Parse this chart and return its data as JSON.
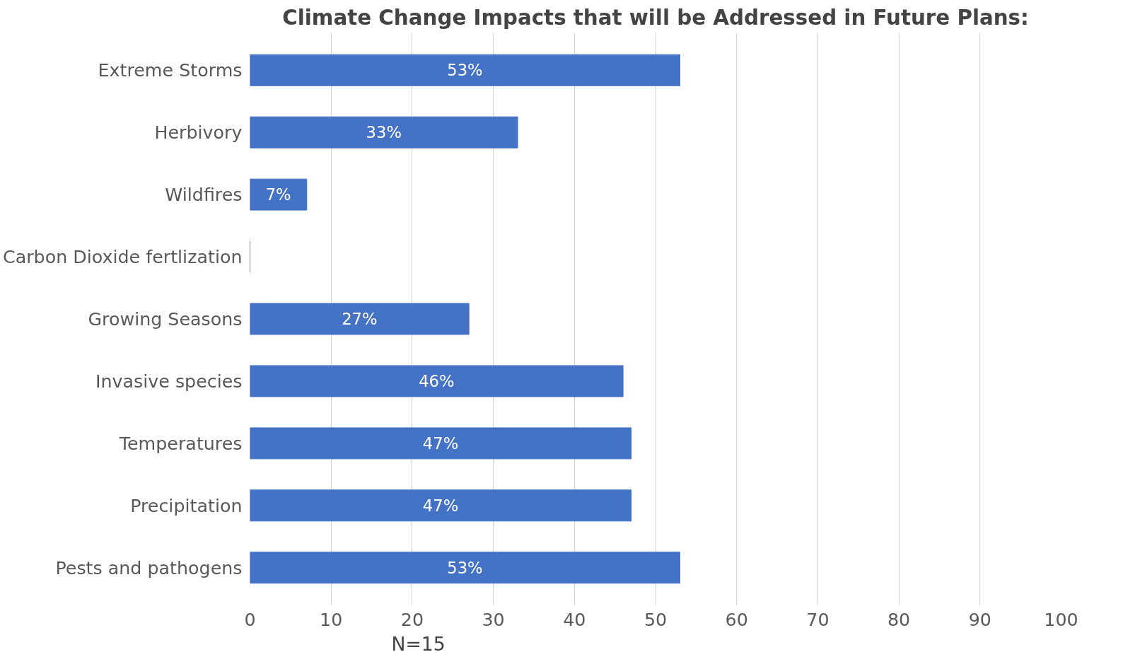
{
  "chart_data": {
    "type": "bar",
    "orientation": "horizontal",
    "title": "Climate Change Impacts that will be Addressed in Future Plans:",
    "categories": [
      "Extreme Storms",
      "Herbivory",
      "Wildfires",
      "Carbon Dioxide fertlization",
      "Growing Seasons",
      "Invasive species",
      "Temperatures",
      "Precipitation",
      "Pests and pathogens"
    ],
    "values": [
      53,
      33,
      7,
      0,
      27,
      46,
      47,
      47,
      53
    ],
    "value_labels": [
      "53%",
      "33%",
      "7%",
      null,
      "27%",
      "46%",
      "47%",
      "47%",
      "53%"
    ],
    "color": "#4472c4",
    "xlim": [
      0,
      100
    ],
    "xticks": [
      0,
      10,
      20,
      30,
      40,
      50,
      60,
      70,
      80,
      90,
      100
    ],
    "grid": "x",
    "annotations": [
      "N=15"
    ]
  }
}
